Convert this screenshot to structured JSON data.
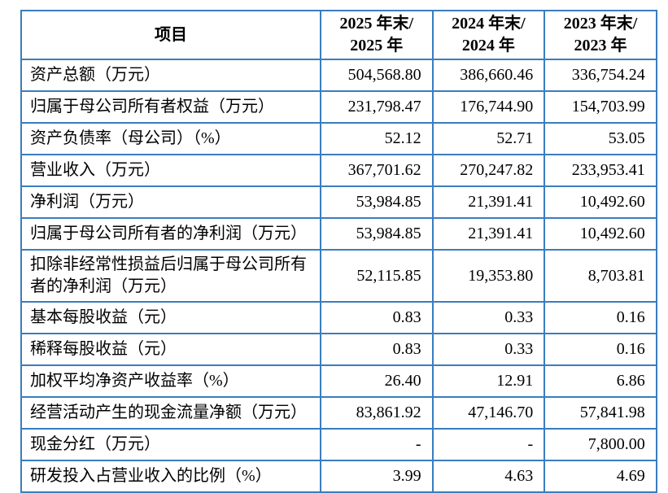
{
  "colors": {
    "table_border": "#3a7dbf",
    "text": "#000000",
    "background": "#ffffff"
  },
  "table": {
    "header": {
      "item_col": "项目",
      "year_cols": [
        {
          "line1": "2025 年末/",
          "line2": "2025 年"
        },
        {
          "line1": "2024 年末/",
          "line2": "2024 年"
        },
        {
          "line1": "2023 年末/",
          "line2": "2023 年"
        }
      ]
    },
    "rows": [
      {
        "label": "资产总额（万元）",
        "values": [
          "504,568.80",
          "386,660.46",
          "336,754.24"
        ]
      },
      {
        "label": "归属于母公司所有者权益（万元）",
        "values": [
          "231,798.47",
          "176,744.90",
          "154,703.99"
        ]
      },
      {
        "label": "资产负债率（母公司）（%）",
        "values": [
          "52.12",
          "52.71",
          "53.05"
        ]
      },
      {
        "label": "营业收入（万元）",
        "values": [
          "367,701.62",
          "270,247.82",
          "233,953.41"
        ]
      },
      {
        "label": "净利润（万元）",
        "values": [
          "53,984.85",
          "21,391.41",
          "10,492.60"
        ]
      },
      {
        "label": "归属于母公司所有者的净利润（万元）",
        "values": [
          "53,984.85",
          "21,391.41",
          "10,492.60"
        ]
      },
      {
        "label": "扣除非经常性损益后归属于母公司所有者的净利润（万元）",
        "values": [
          "52,115.85",
          "19,353.80",
          "8,703.81"
        ]
      },
      {
        "label": "基本每股收益（元）",
        "values": [
          "0.83",
          "0.33",
          "0.16"
        ]
      },
      {
        "label": "稀释每股收益（元）",
        "values": [
          "0.83",
          "0.33",
          "0.16"
        ]
      },
      {
        "label": "加权平均净资产收益率（%）",
        "values": [
          "26.40",
          "12.91",
          "6.86"
        ]
      },
      {
        "label": "经营活动产生的现金流量净额（万元）",
        "values": [
          "83,861.92",
          "47,146.70",
          "57,841.98"
        ]
      },
      {
        "label": "现金分红（万元）",
        "values": [
          "-",
          "-",
          "7,800.00"
        ]
      },
      {
        "label": "研发投入占营业收入的比例（%）",
        "values": [
          "3.99",
          "4.63",
          "4.69"
        ]
      }
    ]
  }
}
